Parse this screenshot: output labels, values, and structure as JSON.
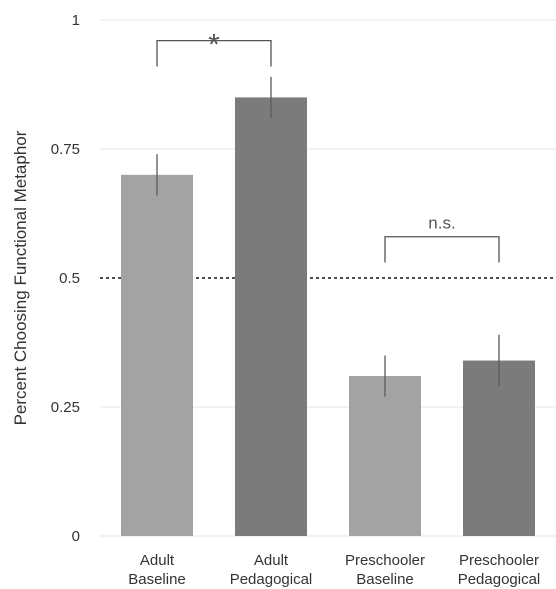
{
  "chart_data": {
    "type": "bar",
    "ylabel": "Percent Choosing Functional Metaphor",
    "ylim": [
      0,
      1
    ],
    "yticks": [
      0,
      0.25,
      0.5,
      0.75,
      1
    ],
    "ytick_labels": [
      "0",
      "0.25",
      "0.5",
      "0.75",
      "1"
    ],
    "grid": true,
    "categories": [
      [
        "Adult",
        "Baseline"
      ],
      [
        "Adult",
        "Pedagogical"
      ],
      [
        "Preschooler",
        "Baseline"
      ],
      [
        "Preschooler",
        "Pedagogical"
      ]
    ],
    "values": [
      0.7,
      0.85,
      0.31,
      0.34
    ],
    "error_low": [
      0.66,
      0.81,
      0.27,
      0.29
    ],
    "error_high": [
      0.74,
      0.89,
      0.35,
      0.39
    ],
    "bar_colors": [
      "#a3a3a3",
      "#7b7b7b",
      "#a3a3a3",
      "#7b7b7b"
    ],
    "reference_line": {
      "y": 0.5,
      "style": "dotted"
    },
    "annotations": [
      {
        "text": "*",
        "from": 0,
        "to": 1,
        "y": 0.96,
        "drop": 0.05
      },
      {
        "text": "n.s.",
        "from": 2,
        "to": 3,
        "y": 0.58,
        "drop": 0.05
      }
    ]
  }
}
